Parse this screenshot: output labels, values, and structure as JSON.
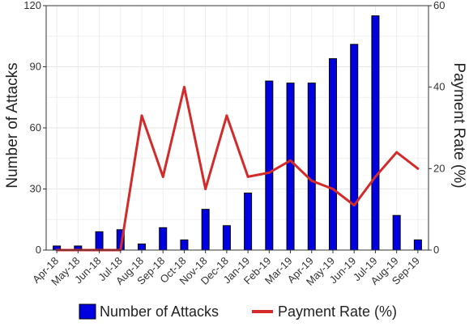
{
  "chart_data": {
    "type": "bar",
    "categories": [
      "Apr-18",
      "May-18",
      "Jun-18",
      "Jul-18",
      "Aug-18",
      "Sep-18",
      "Oct-18",
      "Nov-18",
      "Dec-18",
      "Jan-19",
      "Feb-19",
      "Mar-19",
      "Apr-19",
      "May-19",
      "Jun-19",
      "Jul-19",
      "Aug-19",
      "Sep-19"
    ],
    "series": [
      {
        "name": "Number of Attacks",
        "type": "bar",
        "axis": "left",
        "color": "#0000e0",
        "values": [
          2,
          2,
          9,
          10,
          3,
          11,
          5,
          20,
          12,
          28,
          83,
          82,
          82,
          94,
          101,
          115,
          17,
          5
        ]
      },
      {
        "name": "Payment Rate (%)",
        "type": "line",
        "axis": "right",
        "color": "#d42a2a",
        "values": [
          0,
          0,
          0,
          0,
          33,
          18,
          40,
          15,
          33,
          18,
          19,
          22,
          17,
          15,
          11,
          18,
          24,
          20
        ]
      }
    ],
    "ylabel": "Number of Attacks",
    "ylabel_right": "Payment Rate (%)",
    "ylim": [
      0,
      120
    ],
    "ylim_right": [
      0,
      60
    ],
    "yticks": [
      0,
      30,
      60,
      90,
      120
    ],
    "yticks_right": [
      0,
      20,
      40,
      60
    ],
    "grid": true,
    "legend_position": "bottom"
  }
}
